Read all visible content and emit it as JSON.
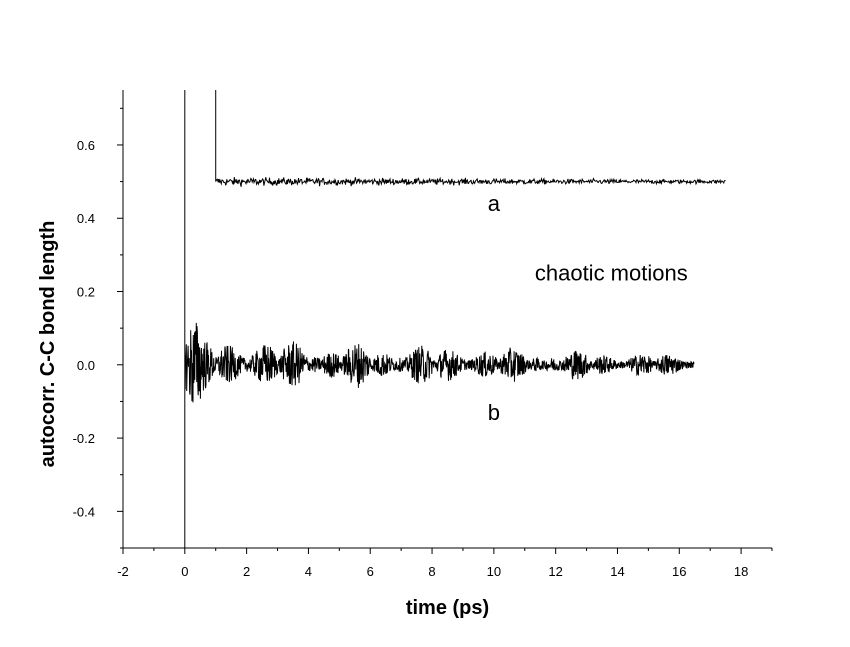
{
  "chart_data": {
    "type": "line",
    "title": "",
    "xlabel": "time (ps)",
    "ylabel": "autocorr. C-C bond length",
    "xlim": [
      -2,
      19
    ],
    "ylim": [
      -0.5,
      0.75
    ],
    "xticks": [
      -2,
      0,
      2,
      4,
      6,
      8,
      10,
      12,
      14,
      16,
      18
    ],
    "xtick_labels": [
      "-2",
      "0",
      "2",
      "4",
      "6",
      "8",
      "10",
      "12",
      "14",
      "16",
      "18"
    ],
    "yticks": [
      -0.4,
      -0.2,
      0.0,
      0.2,
      0.4,
      0.6
    ],
    "ytick_labels": [
      "-0.4",
      "-0.2",
      "0.0",
      "0.2",
      "0.4",
      "0.6"
    ],
    "grid": false,
    "legend": "none",
    "color": "#000000",
    "series": [
      {
        "label": "a",
        "start_x": 1.0,
        "end_x": 17.5,
        "initial_peak": 0.75,
        "baseline": 0.5,
        "noise_amplitude": 0.02
      },
      {
        "label": "b",
        "start_x": 0.0,
        "end_x": 16.5,
        "initial_peak": 0.75,
        "initial_trough": -0.5,
        "baseline": 0.0,
        "max_amplitude": 0.08
      }
    ],
    "annotations": [
      {
        "text": "a",
        "x": 10.0,
        "y": 0.42
      },
      {
        "text": "b",
        "x": 10.0,
        "y": -0.15
      },
      {
        "text": "chaotic motions",
        "x": 13.8,
        "y": 0.23
      }
    ]
  }
}
